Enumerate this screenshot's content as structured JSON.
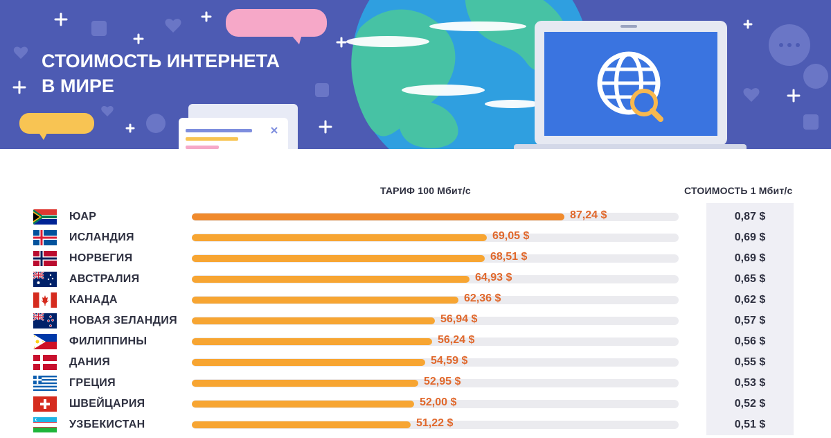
{
  "banner": {
    "title_line1": "СТОИМОСТЬ ИНТЕРНЕТА",
    "title_line2": "В МИРЕ"
  },
  "colors": {
    "banner_bg": "#4d5bb3",
    "bar_top": "#f08a2c",
    "bar": "#f7a532",
    "track": "#ebebef",
    "value_text": "#e0682c"
  },
  "chart_data": {
    "type": "bar",
    "orientation": "horizontal",
    "unit": "$",
    "value_header": "ТАРИФ 100 Мбит/с",
    "secondary_header": "СТОИМОСТЬ 1 Мбит/с",
    "xlim": [
      0,
      100
    ],
    "grid": false,
    "categories": [
      "ЮАР",
      "ИСЛАНДИЯ",
      "НОРВЕГИЯ",
      "АВСТРАЛИЯ",
      "КАНАДА",
      "НОВАЯ ЗЕЛАНДИЯ",
      "ФИЛИППИНЫ",
      "ДАНИЯ",
      "ГРЕЦИЯ",
      "ШВЕЙЦАРИЯ",
      "УЗБЕКИСТАН"
    ],
    "flags": [
      "flag-za-icon",
      "flag-is-icon",
      "flag-no-icon",
      "flag-au-icon",
      "flag-ca-icon",
      "flag-nz-icon",
      "flag-ph-icon",
      "flag-dk-icon",
      "flag-gr-icon",
      "flag-ch-icon",
      "flag-uz-icon"
    ],
    "values": [
      87.24,
      69.05,
      68.51,
      64.93,
      62.36,
      56.94,
      56.24,
      54.59,
      52.95,
      52.0,
      51.22
    ],
    "value_labels": [
      "87,24 $",
      "69,05 $",
      "68,51 $",
      "64,93 $",
      "62,36 $",
      "56,94 $",
      "56,24 $",
      "54,59 $",
      "52,95 $",
      "52,00 $",
      "51,22 $"
    ],
    "cost_per_mbit": [
      0.87,
      0.69,
      0.69,
      0.65,
      0.62,
      0.57,
      0.56,
      0.55,
      0.53,
      0.52,
      0.51
    ],
    "cost_labels": [
      "0,87 $",
      "0,69 $",
      "0,69 $",
      "0,65 $",
      "0,62 $",
      "0,57 $",
      "0,56 $",
      "0,55 $",
      "0,53 $",
      "0,52 $",
      "0,51 $"
    ]
  }
}
